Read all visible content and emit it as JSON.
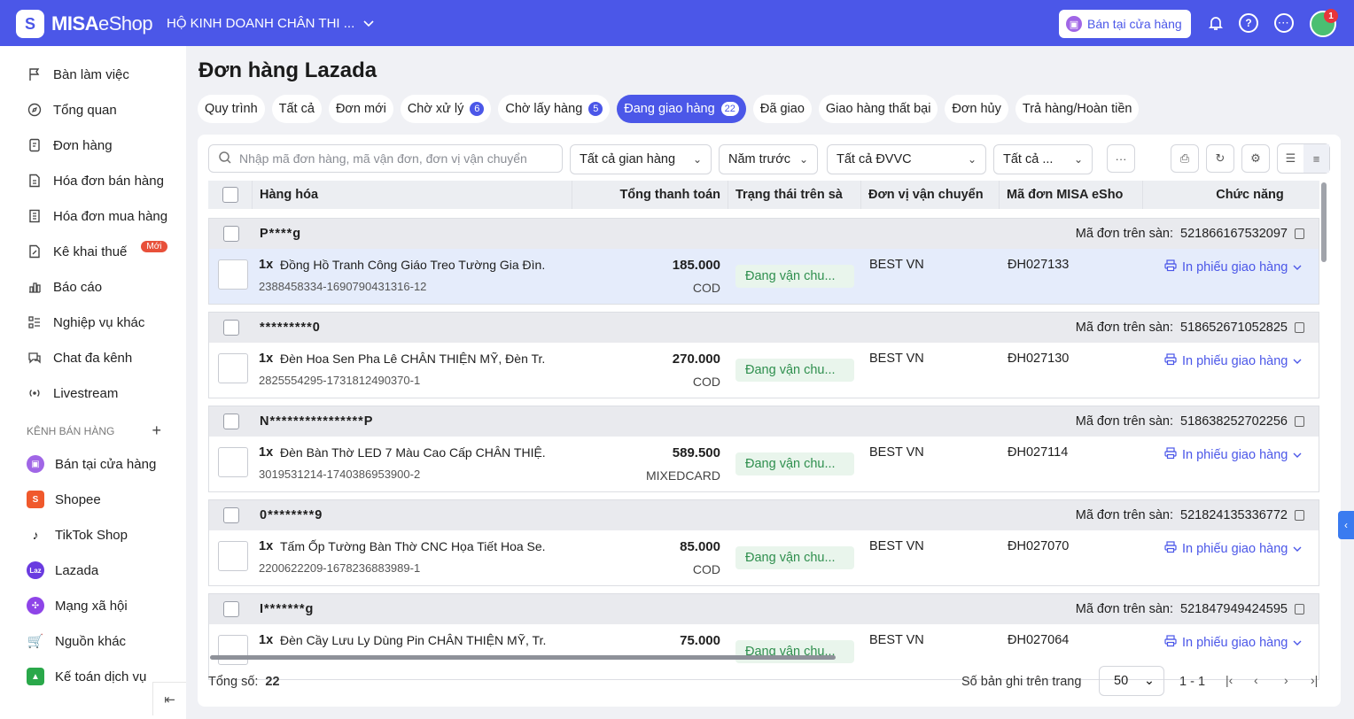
{
  "header": {
    "brand_strong": "MISA",
    "brand_light": "eShop",
    "shop_name": "HỘ KINH DOANH CHÂN THI ...",
    "store_button": "Bán tại cửa hàng",
    "avatar_badge": "1"
  },
  "sidebar": {
    "items": [
      {
        "label": "Bàn làm việc",
        "icon": "flag-icon"
      },
      {
        "label": "Tổng quan",
        "icon": "compass-icon"
      },
      {
        "label": "Đơn hàng",
        "icon": "order-icon"
      },
      {
        "label": "Hóa đơn bán hàng",
        "icon": "invoice-icon"
      },
      {
        "label": "Hóa đơn mua hàng",
        "icon": "purchase-invoice-icon"
      },
      {
        "label": "Kê khai thuế",
        "icon": "tax-icon",
        "badge": "Mới"
      },
      {
        "label": "Báo cáo",
        "icon": "chart-icon"
      },
      {
        "label": "Nghiệp vụ khác",
        "icon": "list-icon"
      },
      {
        "label": "Chat đa kênh",
        "icon": "chat-icon"
      },
      {
        "label": "Livestream",
        "icon": "livestream-icon"
      }
    ],
    "section_title": "KÊNH BÁN HÀNG",
    "channels": [
      {
        "label": "Bán tại cửa hàng",
        "color": "#a066e6"
      },
      {
        "label": "Shopee",
        "color": "#f0592c"
      },
      {
        "label": "TikTok Shop",
        "color": "#111111"
      },
      {
        "label": "Lazada",
        "color": "#6a3be0"
      },
      {
        "label": "Mạng xã hội",
        "color": "#8e44e8"
      },
      {
        "label": "Nguồn khác",
        "color": "#2aa84a"
      },
      {
        "label": "Kế toán dịch vụ",
        "color": "#2aa84a"
      }
    ]
  },
  "page": {
    "title": "Đơn hàng Lazada",
    "tabs": [
      {
        "label": "Quy trình"
      },
      {
        "label": "Tất cả"
      },
      {
        "label": "Đơn mới"
      },
      {
        "label": "Chờ xử lý",
        "count": "6"
      },
      {
        "label": "Chờ lấy hàng",
        "count": "5"
      },
      {
        "label": "Đang giao hàng",
        "count": "22",
        "active": true
      },
      {
        "label": "Đã giao"
      },
      {
        "label": "Giao hàng thất bại"
      },
      {
        "label": "Đơn hủy"
      },
      {
        "label": "Trả hàng/Hoàn tiền"
      }
    ]
  },
  "filters": {
    "search_placeholder": "Nhập mã đơn hàng, mã vận đơn, đơn vị vận chuyển",
    "shop": "Tất cả gian hàng",
    "period": "Năm trước",
    "carrier": "Tất cả ĐVVC",
    "other": "Tất cả ...",
    "more": "···"
  },
  "table": {
    "columns": [
      "Hàng hóa",
      "Tổng thanh toán",
      "Trạng thái trên sà",
      "Đơn vị vận chuyển",
      "Mã đơn MISA eSho",
      "Chức năng"
    ],
    "platform_code_label": "Mã đơn trên sàn:",
    "print_label": "In phiếu giao hàng",
    "orders": [
      {
        "buyer": "P****g",
        "platform_code": "521866167532097",
        "qty": "1x",
        "product": "Đồng Hồ Tranh Công Giáo Treo Tường Gia Đìn...",
        "sku": "2388458334-1690790431316-12",
        "amount": "185.000",
        "payment": "COD",
        "status": "Đang vận chu...",
        "carrier": "BEST VN",
        "misa_code": "ĐH027133"
      },
      {
        "buyer": "*********0",
        "platform_code": "518652671052825",
        "qty": "1x",
        "product": "Đèn Hoa Sen Pha Lê CHÂN THIỆN MỸ, Đèn Tr...",
        "sku": "2825554295-1731812490370-1",
        "amount": "270.000",
        "payment": "COD",
        "status": "Đang vận chu...",
        "carrier": "BEST VN",
        "misa_code": "ĐH027130"
      },
      {
        "buyer": "N****************P",
        "platform_code": "518638252702256",
        "qty": "1x",
        "product": "Đèn Bàn Thờ LED 7 Màu Cao Cấp CHÂN THIỆ...",
        "sku": "3019531214-1740386953900-2",
        "amount": "589.500",
        "payment": "MIXEDCARD",
        "status": "Đang vận chu...",
        "carrier": "BEST VN",
        "misa_code": "ĐH027114"
      },
      {
        "buyer": "0********9",
        "platform_code": "521824135336772",
        "qty": "1x",
        "product": "Tấm Ốp Tường Bàn Thờ CNC Họa Tiết Hoa Se...",
        "sku": "2200622209-1678236883989-1",
        "amount": "85.000",
        "payment": "COD",
        "status": "Đang vận chu...",
        "carrier": "BEST VN",
        "misa_code": "ĐH027070"
      },
      {
        "buyer": "I*******g",
        "platform_code": "521847949424595",
        "qty": "1x",
        "product": "Đèn Cầy Lưu Ly Dùng Pin CHÂN THIỆN MỸ, Tr...",
        "sku": "",
        "amount": "75.000",
        "payment": "",
        "status": "Đang vận chu...",
        "carrier": "BEST VN",
        "misa_code": "ĐH027064"
      }
    ]
  },
  "footer": {
    "total_label": "Tổng số:",
    "total_value": "22",
    "per_page_label": "Số bản ghi trên trang",
    "per_page_value": "50",
    "range": "1 - 1"
  }
}
